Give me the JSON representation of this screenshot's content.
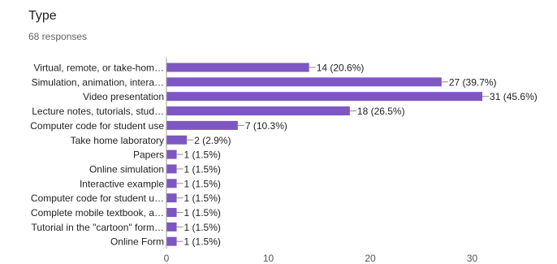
{
  "question": {
    "title": "Type",
    "responses_label": "68 responses"
  },
  "colors": {
    "bar": "#7e57c2",
    "axis": "#9e9e9e",
    "tick_text": "#555555",
    "label_text": "#222222"
  },
  "chart_data": {
    "type": "bar",
    "orientation": "horizontal",
    "title": "Type",
    "subtitle": "68 responses",
    "xlim": [
      0,
      37
    ],
    "x_ticks": [
      0,
      10,
      20,
      30
    ],
    "grid": false,
    "categories": [
      "Virtual, remote, or take-hom…",
      "Simulation, animation, intera…",
      "Video presentation",
      "Lecture notes, tutorials, stud…",
      "Computer code for student use",
      "Take home laboratory",
      "Papers",
      "Online simulation",
      "Interactive example",
      "Computer code for student u…",
      "Complete mobile textbook, a…",
      "Tutorial in the \"cartoon\" form…",
      "Online Form"
    ],
    "values": [
      14,
      27,
      31,
      18,
      7,
      2,
      1,
      1,
      1,
      1,
      1,
      1,
      1
    ],
    "data_labels": [
      "14 (20.6%)",
      "27 (39.7%)",
      "31 (45.6%)",
      "18 (26.5%)",
      "7 (10.3%)",
      "2 (2.9%)",
      "1 (1.5%)",
      "1 (1.5%)",
      "1 (1.5%)",
      "1 (1.5%)",
      "1 (1.5%)",
      "1 (1.5%)",
      "1 (1.5%)"
    ]
  }
}
